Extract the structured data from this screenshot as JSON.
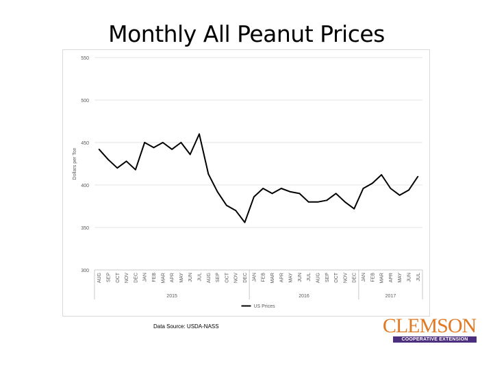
{
  "slide_title": "Monthly All Peanut Prices",
  "source_text": "Data Source: USDA-NASS",
  "logo": {
    "main": "CLEMSON",
    "sub": "COOPERATIVE EXTENSION",
    "main_color": "#e07a25",
    "sub_bg": "#4b2f7e"
  },
  "chart_data": {
    "type": "line",
    "categories": [
      "AUG",
      "SEP",
      "OCT",
      "NOV",
      "DEC",
      "JAN",
      "FEB",
      "MAR",
      "APR",
      "MAY",
      "JUN",
      "JUL",
      "AUG",
      "SEP",
      "OCT",
      "NOV",
      "DEC",
      "JAN",
      "FEB",
      "MAR",
      "APR",
      "MAY",
      "JUN",
      "JUL",
      "AUG",
      "SEP",
      "OCT",
      "NOV",
      "DEC",
      "JAN",
      "FEB",
      "MAR",
      "APR",
      "MAY",
      "JUN",
      "JUL"
    ],
    "year_groups": [
      {
        "label": "2015",
        "start": 0,
        "end": 16
      },
      {
        "label": "2016",
        "start": 17,
        "end": 28
      },
      {
        "label": "2017",
        "start": 29,
        "end": 35
      }
    ],
    "series": [
      {
        "name": "US Prices",
        "color": "#000000",
        "values": [
          442,
          430,
          420,
          428,
          418,
          450,
          444,
          450,
          442,
          450,
          436,
          460,
          413,
          392,
          376,
          370,
          356,
          386,
          396,
          390,
          396,
          392,
          390,
          380,
          380,
          382,
          390,
          380,
          372,
          396,
          402,
          412,
          396,
          388,
          394,
          410
        ]
      }
    ],
    "ylabel": "Dollars per Ton",
    "xlabel": "",
    "ylim": [
      300,
      550
    ],
    "yticks": [
      300,
      350,
      400,
      450,
      500,
      550
    ],
    "grid": true,
    "legend": "bottom"
  }
}
